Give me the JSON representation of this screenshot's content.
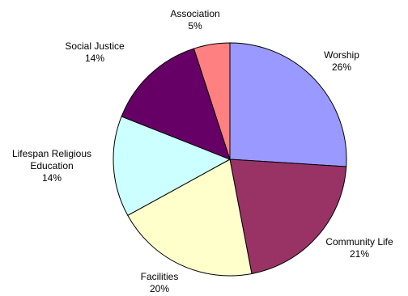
{
  "chart_data": {
    "type": "pie",
    "slices": [
      {
        "label": "Worship",
        "percent_text": "26%",
        "value": 26,
        "color": "#9999ff"
      },
      {
        "label": "Community Life",
        "percent_text": "21%",
        "value": 21,
        "color": "#993366"
      },
      {
        "label": "Facilities",
        "percent_text": "20%",
        "value": 20,
        "color": "#ffffcc"
      },
      {
        "label": "Lifespan Religious Education",
        "percent_text": "14%",
        "value": 14,
        "color": "#ccffff"
      },
      {
        "label": "Social Justice",
        "percent_text": "14%",
        "value": 14,
        "color": "#660066"
      },
      {
        "label": "Association",
        "percent_text": "5%",
        "value": 5,
        "color": "#ff8080"
      }
    ],
    "start": "12 o'clock",
    "direction": "clockwise",
    "legend": "none"
  }
}
